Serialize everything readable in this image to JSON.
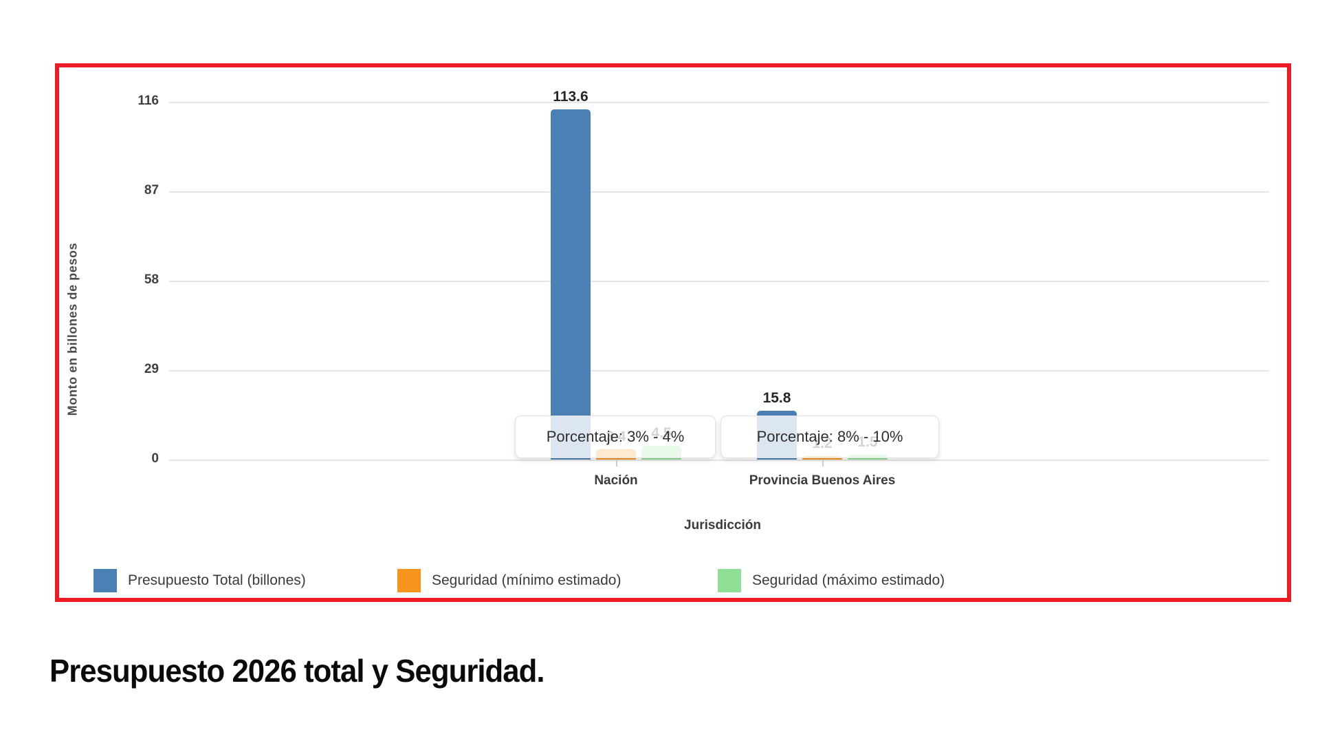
{
  "page": {
    "caption": "Presupuesto 2026 total y Seguridad."
  },
  "chart_data": {
    "type": "bar",
    "title": "",
    "xlabel": "Jurisdicción",
    "ylabel": "Monto en billones de pesos",
    "categories": [
      "Nación",
      "Provincia Buenos Aires"
    ],
    "series": [
      {
        "name": "Presupuesto Total (billones)",
        "color": "#4A80B4",
        "values": [
          113.6,
          15.8
        ]
      },
      {
        "name": "Seguridad (mínimo estimado)",
        "color": "#F7941D",
        "values": [
          3.4,
          1.2
        ]
      },
      {
        "name": "Seguridad (máximo estimado)",
        "color": "#8FE096",
        "values": [
          4.5,
          1.5
        ]
      }
    ],
    "yticks": [
      0,
      29,
      58,
      87,
      116
    ],
    "ylim": [
      0,
      121
    ],
    "grid": true,
    "legend_position": "bottom",
    "tooltips": [
      {
        "label": "Porcentaje: 3% - 4%"
      },
      {
        "label": "Porcentaje: 8% - 10%"
      }
    ],
    "frame_color": "#EC1B24"
  }
}
